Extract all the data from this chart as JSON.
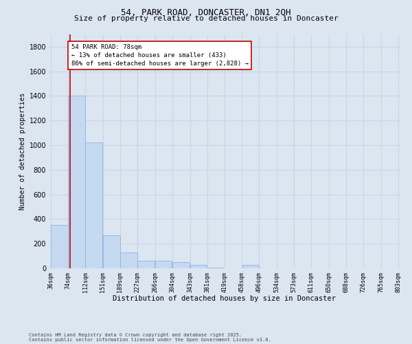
{
  "title": "54, PARK ROAD, DONCASTER, DN1 2QH",
  "subtitle": "Size of property relative to detached houses in Doncaster",
  "xlabel": "Distribution of detached houses by size in Doncaster",
  "ylabel": "Number of detached properties",
  "footnote1": "Contains HM Land Registry data © Crown copyright and database right 2025.",
  "footnote2": "Contains public sector information licensed under the Open Government Licence v3.0.",
  "annotation_title": "54 PARK ROAD: 78sqm",
  "annotation_line1": "← 13% of detached houses are smaller (433)",
  "annotation_line2": "86% of semi-detached houses are larger (2,828) →",
  "property_size": 78,
  "bar_left_edges": [
    36,
    74,
    112,
    151,
    189,
    227,
    266,
    304,
    343,
    381,
    419,
    458,
    496,
    534,
    573,
    611,
    650,
    688,
    726,
    765
  ],
  "bar_widths": [
    38,
    38,
    38,
    38,
    38,
    38,
    38,
    38,
    38,
    38,
    38,
    38,
    38,
    38,
    38,
    38,
    38,
    38,
    38,
    38
  ],
  "bar_heights": [
    350,
    1400,
    1020,
    270,
    130,
    60,
    60,
    50,
    30,
    5,
    0,
    30,
    0,
    0,
    0,
    0,
    0,
    0,
    0,
    0
  ],
  "tick_labels": [
    "36sqm",
    "74sqm",
    "112sqm",
    "151sqm",
    "189sqm",
    "227sqm",
    "266sqm",
    "304sqm",
    "343sqm",
    "381sqm",
    "419sqm",
    "458sqm",
    "496sqm",
    "534sqm",
    "573sqm",
    "611sqm",
    "650sqm",
    "688sqm",
    "726sqm",
    "765sqm",
    "803sqm"
  ],
  "tick_positions": [
    36,
    74,
    112,
    151,
    189,
    227,
    266,
    304,
    343,
    381,
    419,
    458,
    496,
    534,
    573,
    611,
    650,
    688,
    726,
    765,
    803
  ],
  "bar_color": "#c5d9f1",
  "bar_edge_color": "#8eb4e3",
  "vline_color": "#c00000",
  "annotation_box_color": "#c00000",
  "annotation_bg": "#ffffff",
  "grid_color": "#c8d4e8",
  "background_color": "#dce6f1",
  "ylim": [
    0,
    1900
  ],
  "yticks": [
    0,
    200,
    400,
    600,
    800,
    1000,
    1200,
    1400,
    1600,
    1800
  ],
  "title_fontsize": 9,
  "subtitle_fontsize": 8,
  "annotation_fontsize": 6.5,
  "ylabel_fontsize": 7,
  "xlabel_fontsize": 7.5,
  "ytick_fontsize": 7,
  "xtick_fontsize": 6
}
